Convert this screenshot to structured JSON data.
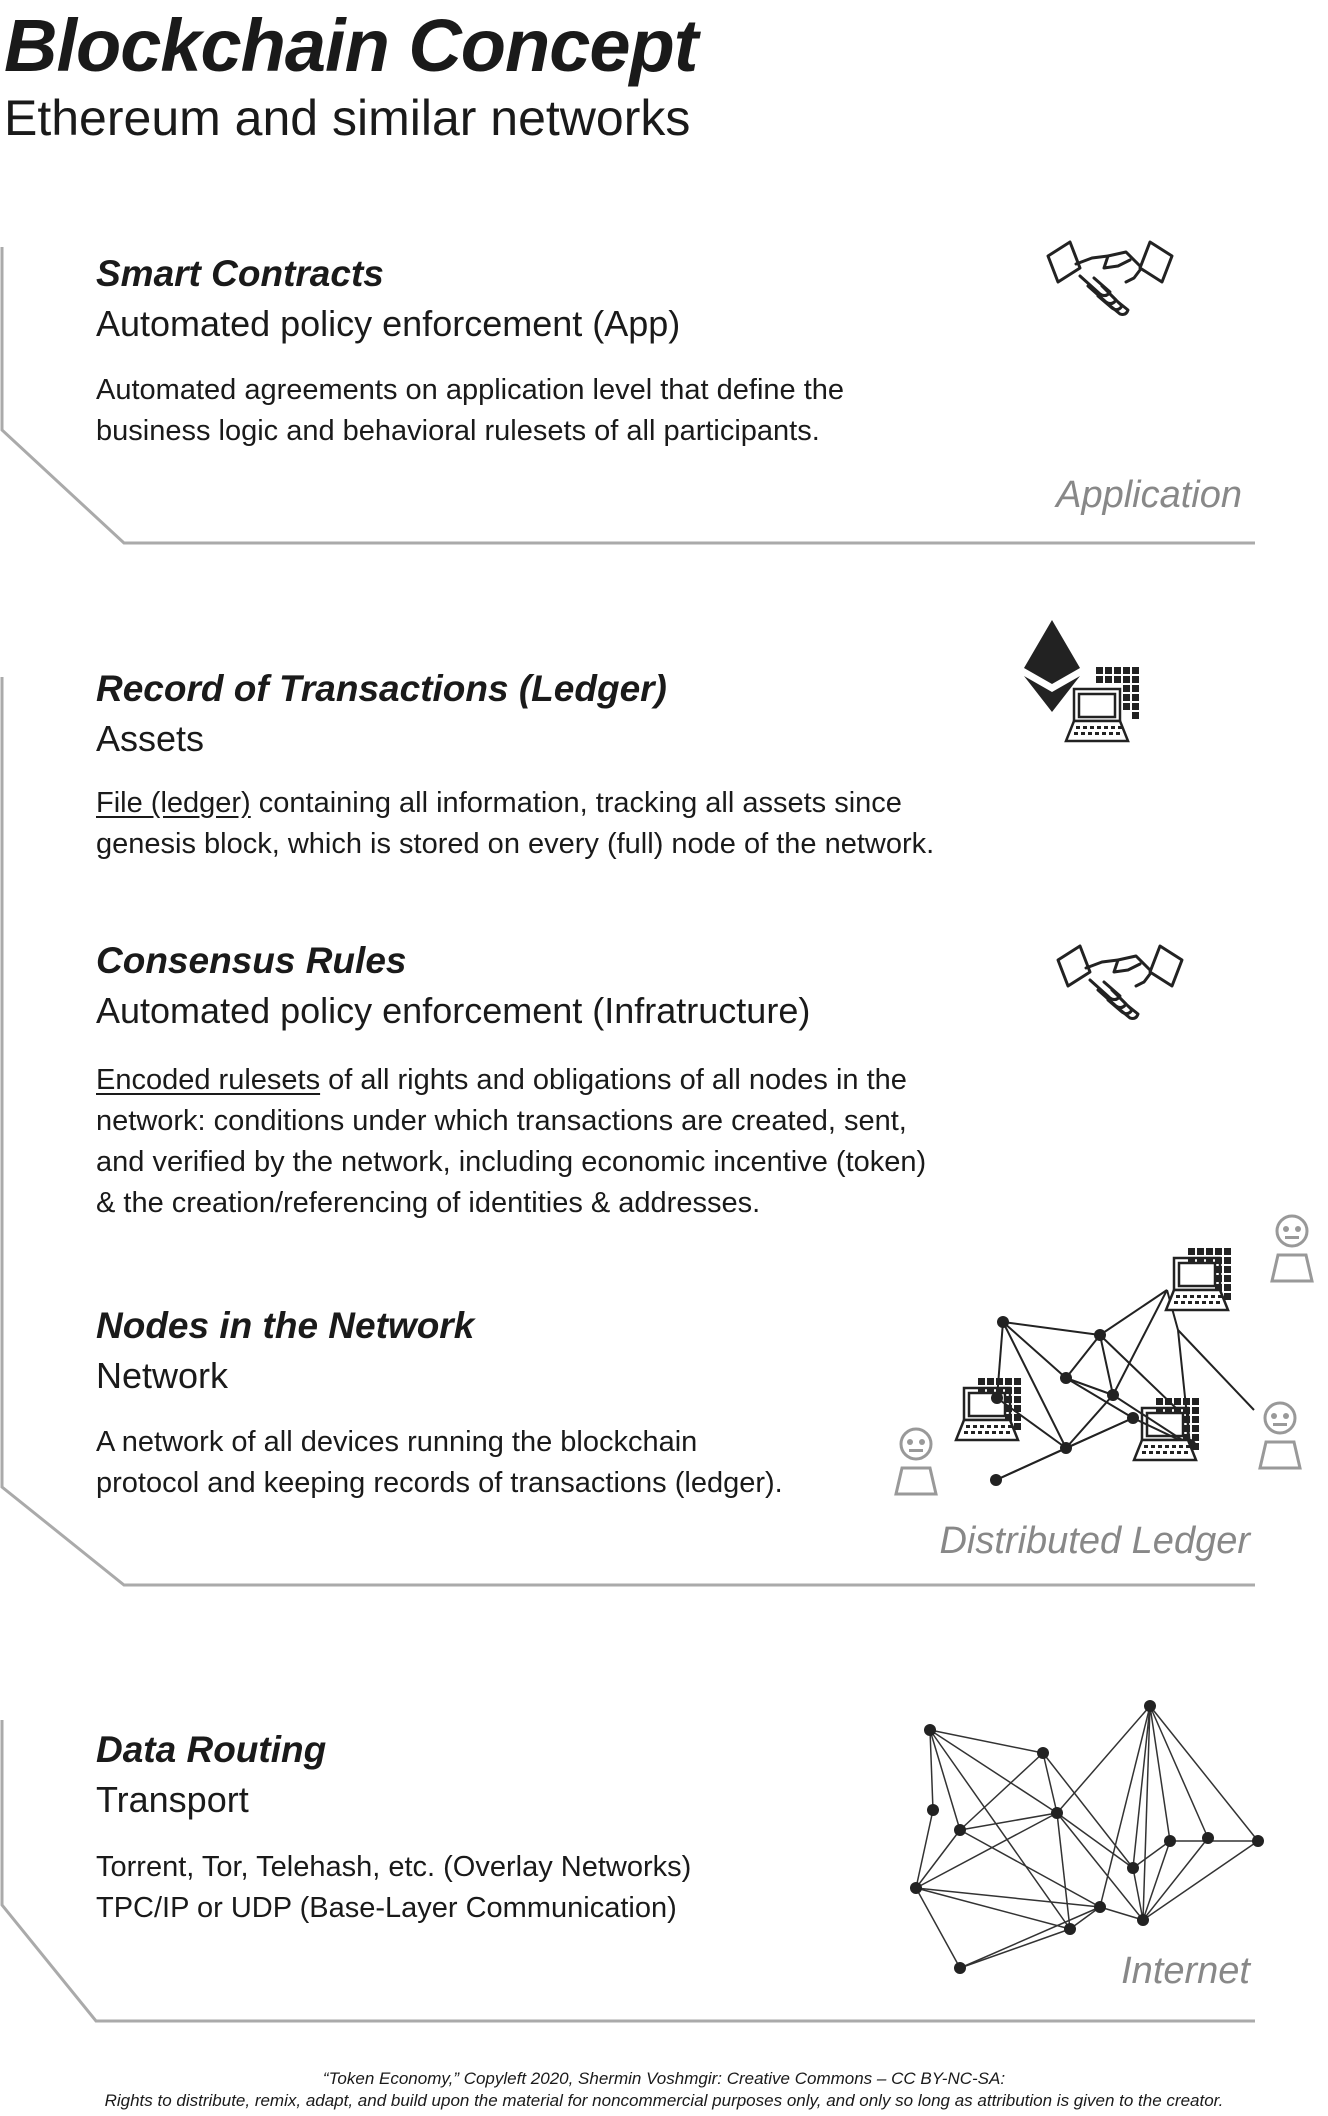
{
  "header": {
    "title": "Blockchain Concept",
    "subtitle": "Ethereum and similar networks"
  },
  "sections": [
    {
      "title": "Smart Contracts",
      "subtitle": "Automated policy enforcement (App)",
      "body_lines": [
        "Automated agreements on application level that define the",
        "business logic and behavioral rulesets of all participants."
      ],
      "icon": "handshake-icon"
    },
    {
      "title": "Record of Transactions (Ledger)",
      "subtitle": "Assets",
      "body_link": "File (ledger)",
      "body_lines": [
        " containing all information, tracking all assets since",
        "genesis block, which is stored on every (full) node of the network."
      ],
      "icon": "ethereum-ledger-icon"
    },
    {
      "title": "Consensus Rules",
      "subtitle": "Automated policy enforcement (Infratructure)",
      "body_link": "Encoded rulesets",
      "body_lines": [
        " of all rights and obligations of all nodes in the",
        "network: conditions under which transactions are created, sent,",
        "and verified by the network, including economic incentive (token)",
        "& the creation/referencing of identities & addresses."
      ],
      "icon": "handshake-icon"
    },
    {
      "title": "Nodes in the Network",
      "subtitle": "Network",
      "body_lines": [
        "A network of all devices running the blockchain",
        "protocol and keeping records of transactions (ledger)."
      ],
      "icon": "node-network-icon"
    },
    {
      "title": "Data Routing",
      "subtitle": "Transport",
      "body_lines": [
        "Torrent, Tor, Telehash, etc. (Overlay Networks)",
        "TPC/IP or UDP (Base-Layer Communication)"
      ],
      "icon": "internet-mesh-icon"
    }
  ],
  "layers": {
    "application": "Application",
    "distributed_ledger": "Distributed Ledger",
    "internet": "Internet"
  },
  "footer": {
    "line1": "“Token Economy,” Copyleft 2020, Shermin Voshmgir: Creative Commons – CC BY-NC-SA:",
    "line2": "Rights to distribute, remix, adapt, and build upon the material  for noncommercial purposes only, and only so long as attribution is given to the creator."
  },
  "colors": {
    "text": "#1a1a1a",
    "layer_label": "#888888",
    "bracket_line": "#aaaaaa",
    "icon_gray": "#999999"
  }
}
